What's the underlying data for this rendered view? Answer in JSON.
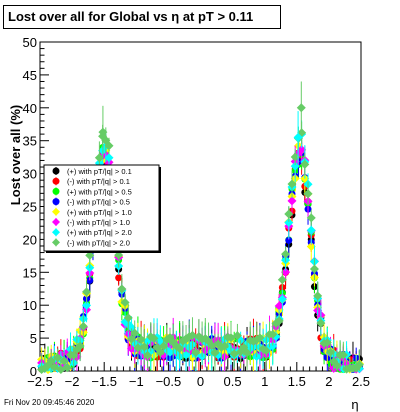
{
  "footer": {
    "datetime": "Fri Nov 20 09:45:46 2020"
  },
  "chart_data": {
    "type": "scatter",
    "title": "Lost over all for Global vs   η at pT > 0.11",
    "xlabel": "η",
    "ylabel": "Lost over all (%)",
    "xlim": [
      -2.5,
      2.5
    ],
    "ylim": [
      0,
      50
    ],
    "x_ticks": [
      "−2.5",
      "−2",
      "−1.5",
      "−1",
      "−0.5",
      "0",
      "0.5",
      "1",
      "1.5",
      "2",
      "2.5"
    ],
    "y_ticks": [
      "0",
      "5",
      "10",
      "15",
      "20",
      "25",
      "30",
      "35",
      "40",
      "45",
      "50"
    ],
    "grid": false,
    "legend_position": "left",
    "legend": [
      "(+) with pT/|q| > 0.1",
      "(-) with pT/|q| > 0.1",
      "(+) with pT/|q| > 0.5",
      "(-) with pT/|q| > 0.5",
      "(+) with pT/|q| > 1.0",
      "(-) with pT/|q| > 1.0",
      "(+) with pT/|q| > 2.0",
      "(-) with pT/|q| > 2.0"
    ],
    "series": [
      {
        "name": "(+) with pT/|q| > 0.1",
        "color": "#000000",
        "marker": "circle",
        "seed": 1,
        "scale": 0.96
      },
      {
        "name": "(-) with pT/|q| > 0.1",
        "color": "#ff0000",
        "marker": "circle",
        "seed": 2,
        "scale": 0.98
      },
      {
        "name": "(+) with pT/|q| > 0.5",
        "color": "#00ff00",
        "marker": "circle",
        "seed": 3,
        "scale": 1.0
      },
      {
        "name": "(-) with pT/|q| > 0.5",
        "color": "#0000ff",
        "marker": "circle",
        "seed": 4,
        "scale": 1.0
      },
      {
        "name": "(+) with pT/|q| > 1.0",
        "color": "#ffff00",
        "marker": "diamond",
        "seed": 5,
        "scale": 1.02
      },
      {
        "name": "(-) with pT/|q| > 1.0",
        "color": "#ff00ff",
        "marker": "diamond",
        "seed": 6,
        "scale": 1.03
      },
      {
        "name": "(+) with pT/|q| > 2.0",
        "color": "#00ffff",
        "marker": "diamond",
        "seed": 7,
        "scale": 1.07
      },
      {
        "name": "(-) with pT/|q| > 2.0",
        "color": "#66cc66",
        "marker": "diamond",
        "seed": 8,
        "scale": 1.1
      }
    ],
    "profile": {
      "peaks": [
        {
          "center": -1.5,
          "height": 30,
          "width": 0.17
        },
        {
          "center": 1.55,
          "height": 30,
          "width": 0.17
        }
      ],
      "baseline_central": 3.5,
      "baseline_edge": 0.5,
      "outliers": [
        {
          "x": -1.52,
          "y": 36.3,
          "series": 7
        },
        {
          "x": 1.57,
          "y": 40.0,
          "series": 7
        },
        {
          "x": 1.52,
          "y": 35.5,
          "series": 6
        }
      ]
    }
  }
}
